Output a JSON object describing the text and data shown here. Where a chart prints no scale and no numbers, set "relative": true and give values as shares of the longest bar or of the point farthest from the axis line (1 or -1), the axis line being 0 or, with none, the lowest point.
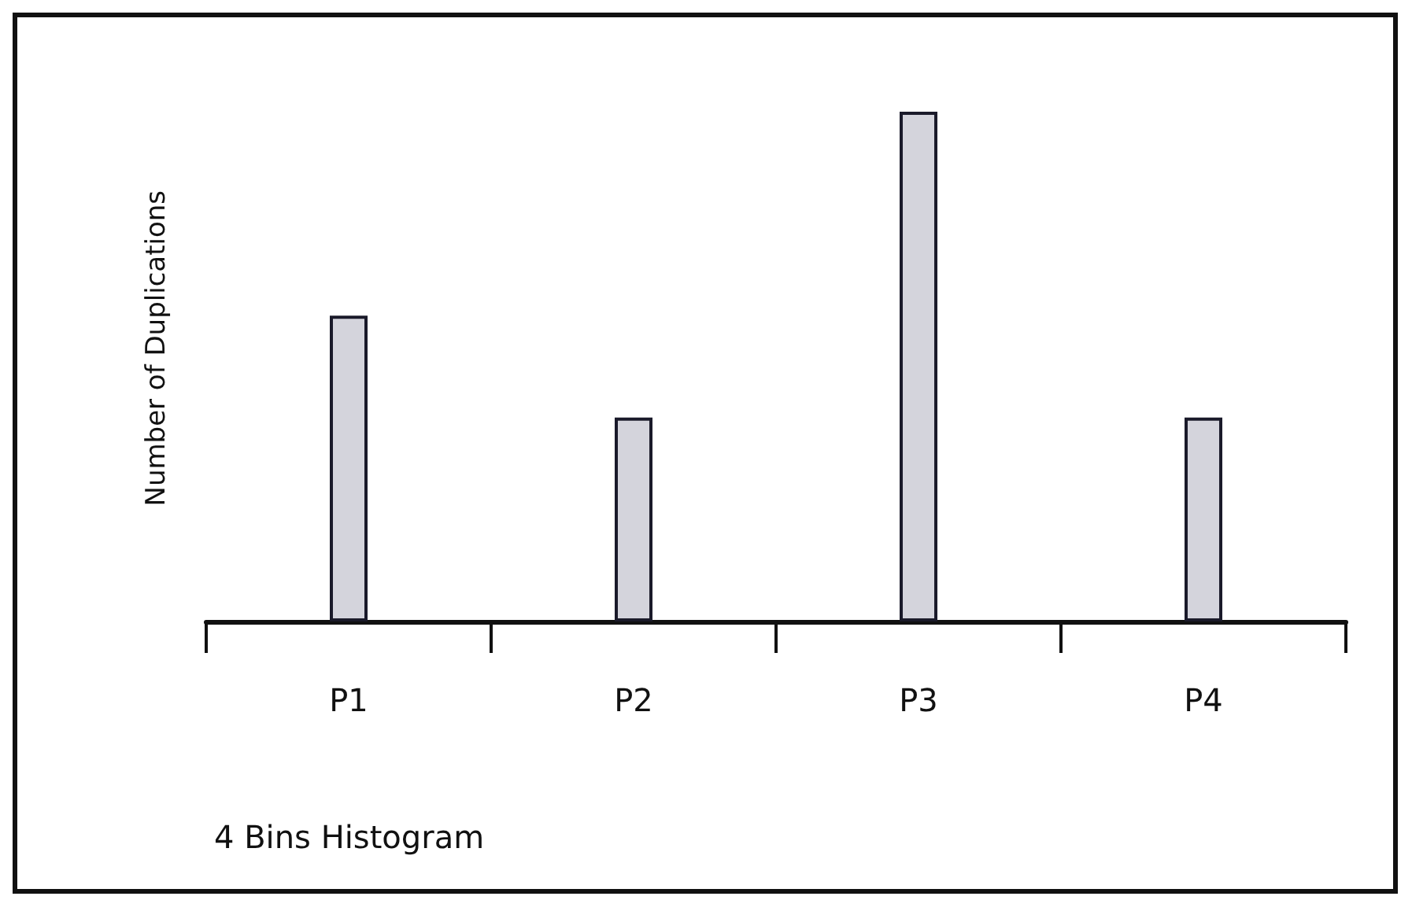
{
  "chart_data": {
    "type": "bar",
    "title": "4 Bins Histogram",
    "ylabel": "Number of Duplications",
    "categories": [
      "P1",
      "P2",
      "P3",
      "P4"
    ],
    "values": [
      0.6,
      0.4,
      1,
      0.4
    ],
    "color": "#d4d4dc",
    "relative": true,
    "grid": false
  }
}
